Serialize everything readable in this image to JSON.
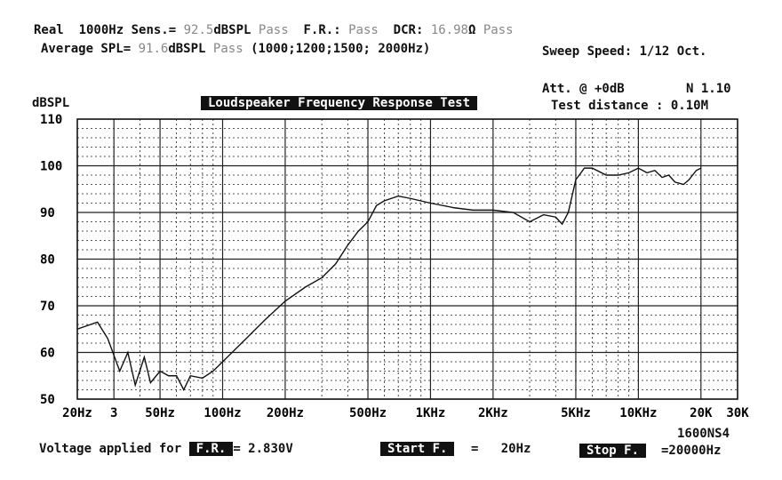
{
  "header": {
    "line1": {
      "real": "Real",
      "freq": "1000Hz",
      "sens_label": "Sens.=",
      "sens_value": "92.5",
      "sens_unit": "dBSPL",
      "sens_status": "Pass",
      "fr_label": "F.R.:",
      "fr_status": "Pass",
      "dcr_label": "DCR:",
      "dcr_value": "16.98",
      "dcr_unit": "Ω",
      "dcr_status": "Pass"
    },
    "line2": {
      "avg_label": "Average SPL=",
      "avg_value": "91.6",
      "avg_unit": "dBSPL",
      "avg_status": "Pass",
      "avg_freqs": "(1000;1200;1500; 2000Hz)",
      "sweep": "Sweep Speed: 1/12 Oct."
    },
    "att": "Att. @  +0dB",
    "n": "N 1.10",
    "distance": "Test distance : 0.10M"
  },
  "footer": {
    "model": "1600NS4",
    "voltage_label": "Voltage applied for",
    "fr_box": "F.R.",
    "voltage_value": "= 2.830V",
    "start_box": "Start F.",
    "start_value": "20Hz",
    "stop_box": "Stop F.",
    "stop_value": "=20000Hz"
  },
  "chart_data": {
    "type": "line",
    "title": "Loudspeaker Frequency Response Test",
    "ylabel": "dBSPL",
    "xlabel": "",
    "xscale": "log",
    "xlim": [
      20,
      30000
    ],
    "ylim": [
      50,
      110
    ],
    "grid": true,
    "yticks": [
      {
        "v": 110,
        "l": "110"
      },
      {
        "v": 100,
        "l": "100"
      },
      {
        "v": 90,
        "l": "90"
      },
      {
        "v": 80,
        "l": "80"
      },
      {
        "v": 70,
        "l": "70"
      },
      {
        "v": 60,
        "l": "60"
      },
      {
        "v": 50,
        "l": "50"
      }
    ],
    "xticks": [
      {
        "v": 20,
        "l": "20Hz"
      },
      {
        "v": 30,
        "l": "3"
      },
      {
        "v": 50,
        "l": "50Hz"
      },
      {
        "v": 100,
        "l": "100Hz"
      },
      {
        "v": 200,
        "l": "200Hz"
      },
      {
        "v": 500,
        "l": "500Hz"
      },
      {
        "v": 1000,
        "l": "1KHz"
      },
      {
        "v": 2000,
        "l": "2KHz"
      },
      {
        "v": 5000,
        "l": "5KHz"
      },
      {
        "v": 10000,
        "l": "10KHz"
      },
      {
        "v": 20000,
        "l": "20K"
      },
      {
        "v": 30000,
        "l": "30K"
      }
    ],
    "x": [
      20,
      25,
      28,
      32,
      35,
      38,
      42,
      45,
      50,
      55,
      60,
      65,
      70,
      80,
      90,
      100,
      130,
      160,
      200,
      250,
      300,
      350,
      400,
      450,
      500,
      550,
      600,
      700,
      800,
      1000,
      1300,
      1600,
      2000,
      2500,
      3000,
      3500,
      4000,
      4300,
      4600,
      5000,
      5500,
      6000,
      7000,
      8000,
      9000,
      10000,
      11000,
      12000,
      13000,
      14000,
      15000,
      16500,
      17500,
      19000,
      20000
    ],
    "y": [
      65,
      66.5,
      63,
      56,
      60,
      53,
      59,
      53.5,
      56,
      55,
      55,
      52,
      55,
      54.5,
      56,
      58,
      63,
      67,
      71,
      74,
      76,
      79,
      83,
      86,
      88,
      91.5,
      92.5,
      93.5,
      93,
      92,
      91,
      90.5,
      90.5,
      90,
      88,
      89.5,
      89,
      87.5,
      90,
      97,
      99.5,
      99.5,
      98,
      98,
      98.5,
      99.5,
      98.5,
      99,
      97.5,
      98,
      96.5,
      96,
      97,
      99,
      99.5
    ]
  }
}
